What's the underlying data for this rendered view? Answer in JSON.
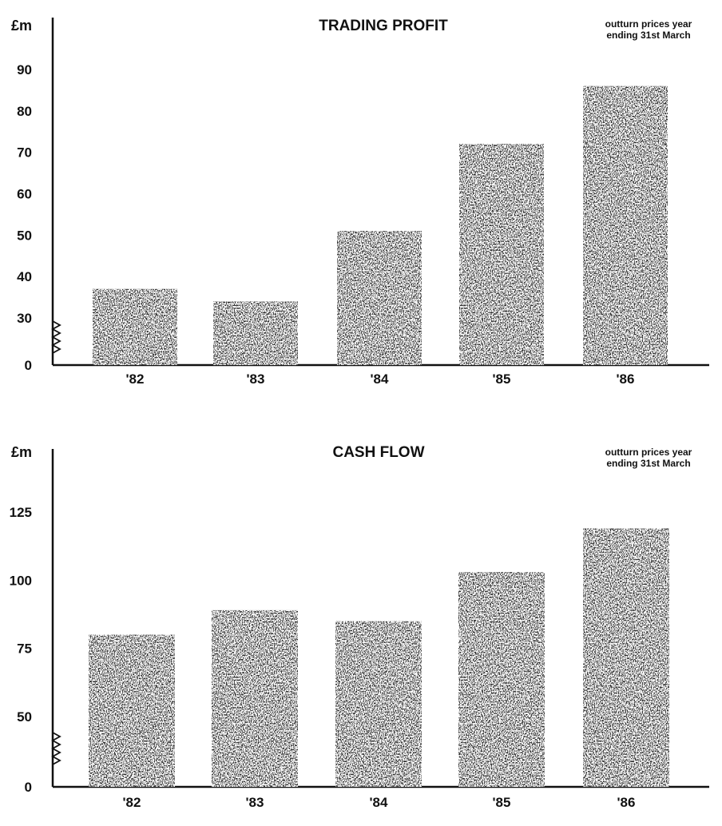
{
  "chart_data": [
    {
      "type": "bar",
      "title": "TRADING PROFIT",
      "note_line1": "outturn prices year",
      "note_line2": "ending 31st March",
      "unit_label": "£m",
      "categories": [
        "'82",
        "'83",
        "'84",
        "'85",
        "'86"
      ],
      "values": [
        37,
        34,
        51,
        72,
        86
      ],
      "yticks": [
        0,
        30,
        40,
        50,
        60,
        70,
        80,
        90
      ],
      "axis_break": "between 0 and 30",
      "ylim": [
        0,
        95
      ],
      "grid": false,
      "bar_color": "#2f2f2f"
    },
    {
      "type": "bar",
      "title": "CASH FLOW",
      "note_line1": "outturn prices year",
      "note_line2": "ending 31st March",
      "unit_label": "£m",
      "categories": [
        "'82",
        "'83",
        "'84",
        "'85",
        "'86"
      ],
      "values": [
        80,
        89,
        85,
        103,
        119
      ],
      "yticks": [
        0,
        50,
        75,
        100,
        125
      ],
      "axis_break": "between 0 and 50",
      "ylim": [
        0,
        135
      ],
      "grid": false,
      "bar_color": "#2f2f2f"
    }
  ]
}
